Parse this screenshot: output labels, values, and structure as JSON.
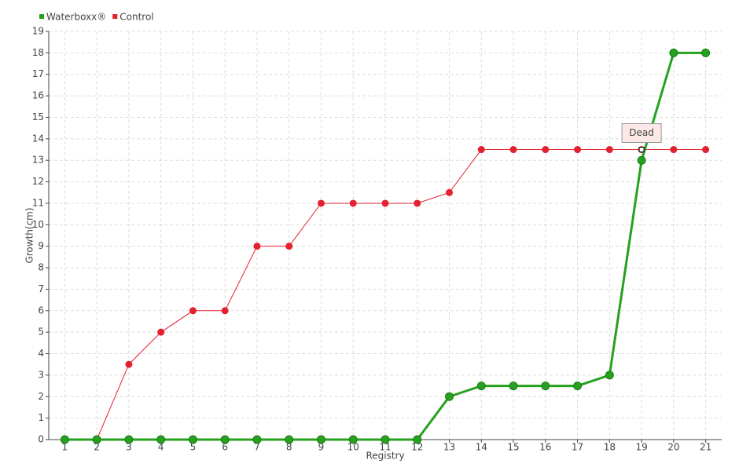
{
  "chart_data": {
    "type": "line",
    "x_label": "Registry",
    "y_label": "Growth(cm)",
    "categories": [
      "1",
      "2",
      "3",
      "4",
      "5",
      "6",
      "7",
      "8",
      "9",
      "10",
      "11",
      "12",
      "13",
      "14",
      "15",
      "16",
      "17",
      "18",
      "19",
      "20",
      "21"
    ],
    "series": [
      {
        "name": "Waterboxx®",
        "color": "#26a11f",
        "values": [
          0,
          0,
          0,
          0,
          0,
          0,
          0,
          0,
          0,
          0,
          0,
          0,
          2,
          2.5,
          2.5,
          2.5,
          2.5,
          3,
          13,
          18,
          18
        ]
      },
      {
        "name": "Control",
        "color": "#e5212f",
        "values": [
          0,
          0,
          3.5,
          5,
          6,
          6,
          9,
          9,
          11,
          11,
          11,
          11,
          11.5,
          13.5,
          13.5,
          13.5,
          13.5,
          13.5,
          13.5,
          13.5,
          13.5
        ]
      }
    ],
    "annotation": "Dead",
    "ylim": [
      0,
      19
    ],
    "yticks": [
      0,
      1,
      2,
      3,
      4,
      5,
      6,
      7,
      8,
      9,
      10,
      11,
      12,
      13,
      14,
      15,
      16,
      17,
      18,
      19
    ],
    "grid": true,
    "legend": "top-left"
  }
}
